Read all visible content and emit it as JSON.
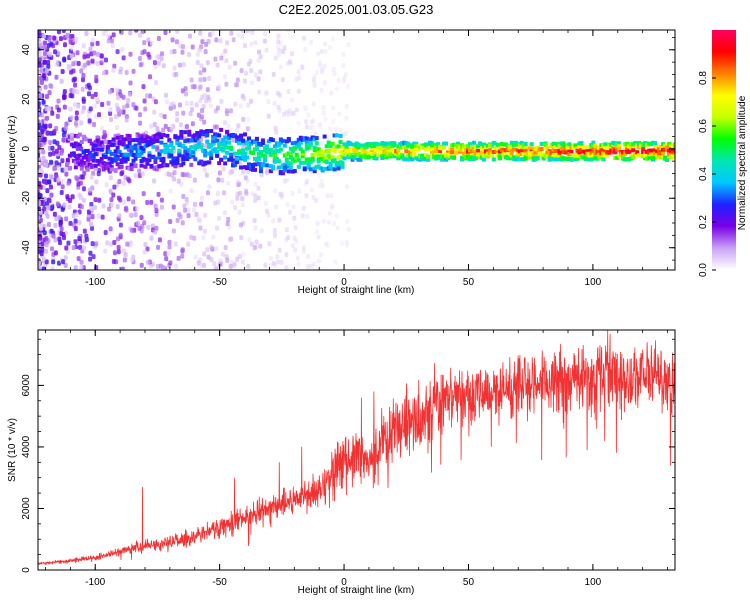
{
  "title": "C2E2.2025.001.03.05.G23",
  "colors": {
    "snr_line": "#f23232",
    "colormap": [
      "#ffffff",
      "#c9a2f5",
      "#7a00e6",
      "#2020ff",
      "#00c8ff",
      "#00e6b4",
      "#00ff00",
      "#c8ff00",
      "#ffff00",
      "#ff8000",
      "#ff0000",
      "#ff0060"
    ]
  },
  "chart_data": [
    {
      "type": "heatmap",
      "name": "spectrogram",
      "xlabel": "Height of straight line (km)",
      "ylabel": "Frequency (Hz)",
      "xlim": [
        -123,
        133
      ],
      "ylim": [
        -49,
        48
      ],
      "x_ticks": [
        -100,
        -50,
        0,
        50,
        100
      ],
      "y_ticks": [
        -40,
        -20,
        0,
        20,
        40
      ],
      "colorbar": {
        "label": "Normalized spectral amplitude",
        "range": [
          0,
          1
        ],
        "ticks": [
          "0.0",
          "0.2",
          "0.4",
          "0.6",
          "0.8"
        ]
      },
      "ridge": [
        {
          "x": -110,
          "y": -1,
          "amp": 0.25
        },
        {
          "x": -95,
          "y": -2,
          "amp": 0.3
        },
        {
          "x": -80,
          "y": -1,
          "amp": 0.35
        },
        {
          "x": -65,
          "y": 0,
          "amp": 0.4
        },
        {
          "x": -50,
          "y": 1,
          "amp": 0.45
        },
        {
          "x": -35,
          "y": -2,
          "amp": 0.5
        },
        {
          "x": -25,
          "y": -3,
          "amp": 0.55
        },
        {
          "x": -10,
          "y": -2,
          "amp": 0.65
        },
        {
          "x": 0,
          "y": -1,
          "amp": 0.75
        },
        {
          "x": 15,
          "y": -1,
          "amp": 0.8
        },
        {
          "x": 40,
          "y": -1,
          "amp": 0.85
        },
        {
          "x": 70,
          "y": -1,
          "amp": 0.9
        },
        {
          "x": 100,
          "y": -1,
          "amp": 0.95
        },
        {
          "x": 133,
          "y": -1,
          "amp": 1.0
        }
      ]
    },
    {
      "type": "line",
      "name": "snr",
      "xlabel": "Height of straight line (km)",
      "ylabel": "SNR (10 * v/v)",
      "xlim": [
        -123,
        133
      ],
      "ylim": [
        0,
        7800
      ],
      "x_ticks": [
        -100,
        -50,
        0,
        50,
        100
      ],
      "y_ticks": [
        0,
        2000,
        4000,
        6000
      ],
      "series": [
        {
          "x": [
            -123,
            -110,
            -100,
            -90,
            -80,
            -70,
            -60,
            -50,
            -40,
            -30,
            -20,
            -10,
            0,
            5,
            10,
            15,
            20,
            30,
            35,
            40,
            50,
            60,
            70,
            80,
            90,
            100,
            105,
            110,
            120,
            133
          ],
          "y": [
            200,
            300,
            400,
            600,
            800,
            900,
            1100,
            1400,
            1700,
            2000,
            2300,
            2700,
            3500,
            3700,
            3500,
            4200,
            4600,
            5000,
            5400,
            5700,
            5700,
            5800,
            6000,
            6100,
            6200,
            6300,
            6500,
            6300,
            6400,
            6200
          ],
          "spikes": [
            {
              "x": -81,
              "y": 2700
            },
            {
              "x": -44,
              "y": 3000
            },
            {
              "x": -26,
              "y": 3500
            },
            {
              "x": -17,
              "y": 4000
            },
            {
              "x": 7,
              "y": 5600
            },
            {
              "x": 12,
              "y": 5800
            },
            {
              "x": 106,
              "y": 7800
            }
          ]
        }
      ]
    }
  ]
}
